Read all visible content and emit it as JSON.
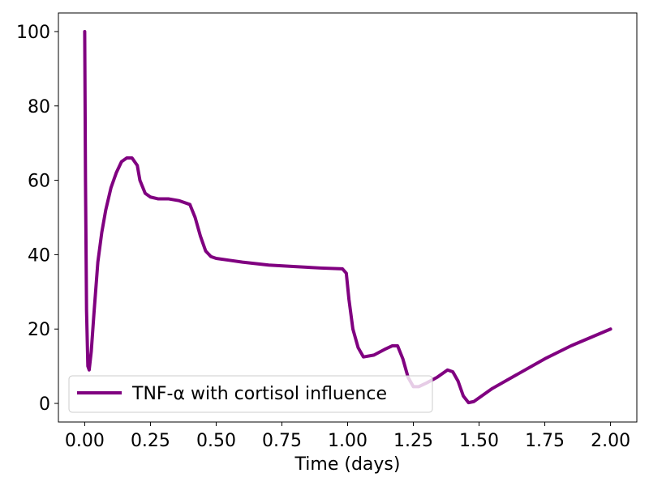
{
  "chart_data": {
    "type": "line",
    "title": "",
    "xlabel": "Time (days)",
    "ylabel": "",
    "xlim": [
      -0.1,
      2.1
    ],
    "ylim": [
      -5,
      105
    ],
    "grid": false,
    "legend_position": "lower-left",
    "x_ticks": [
      0.0,
      0.25,
      0.5,
      0.75,
      1.0,
      1.25,
      1.5,
      1.75,
      2.0
    ],
    "x_tick_labels": [
      "0.00",
      "0.25",
      "0.50",
      "0.75",
      "1.00",
      "1.25",
      "1.50",
      "1.75",
      "2.00"
    ],
    "y_ticks": [
      0,
      20,
      40,
      60,
      80,
      100
    ],
    "y_tick_labels": [
      "0",
      "20",
      "40",
      "60",
      "80",
      "100"
    ],
    "series": [
      {
        "name": "TNF-α with cortisol influence",
        "color": "#800080",
        "x": [
          0.0,
          0.003,
          0.007,
          0.012,
          0.017,
          0.025,
          0.035,
          0.05,
          0.065,
          0.08,
          0.1,
          0.12,
          0.14,
          0.16,
          0.18,
          0.2,
          0.21,
          0.23,
          0.25,
          0.28,
          0.32,
          0.36,
          0.4,
          0.42,
          0.44,
          0.46,
          0.48,
          0.5,
          0.55,
          0.6,
          0.7,
          0.8,
          0.9,
          0.98,
          0.995,
          1.005,
          1.02,
          1.04,
          1.06,
          1.1,
          1.14,
          1.17,
          1.19,
          1.21,
          1.23,
          1.25,
          1.27,
          1.3,
          1.34,
          1.38,
          1.4,
          1.42,
          1.44,
          1.46,
          1.48,
          1.55,
          1.65,
          1.75,
          1.85,
          1.95,
          2.0
        ],
        "y": [
          100,
          60,
          25,
          10,
          9,
          14,
          24,
          38,
          46,
          52,
          58,
          62,
          65,
          66,
          66,
          64,
          60,
          56.5,
          55.5,
          55,
          55,
          54.5,
          53.5,
          50,
          45,
          41,
          39.5,
          39,
          38.5,
          38,
          37.2,
          36.8,
          36.4,
          36.2,
          35,
          28,
          20,
          15,
          12.5,
          13,
          14.5,
          15.5,
          15.5,
          12,
          7,
          4.5,
          4.5,
          5.5,
          7,
          9,
          8.5,
          6,
          2,
          0.2,
          0.5,
          4,
          8,
          12,
          15.5,
          18.5,
          20
        ]
      }
    ]
  }
}
